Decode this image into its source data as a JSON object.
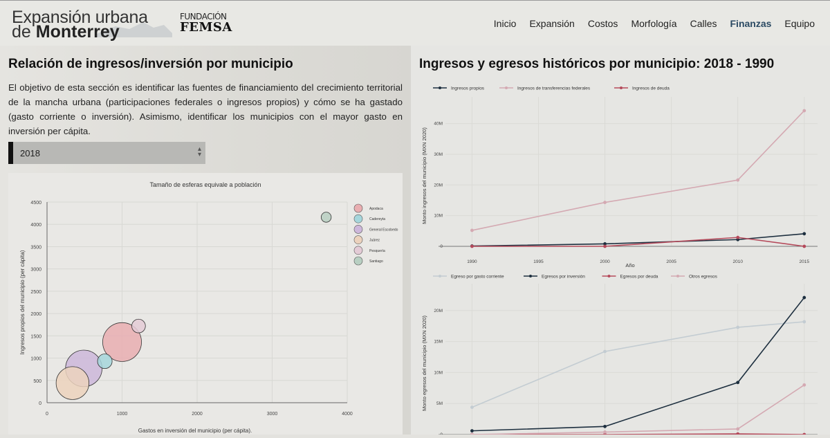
{
  "header": {
    "logo_line1": "Expansión urbana",
    "logo_line2_prefix": "de ",
    "logo_line2_bold": "Monterrey",
    "partner_top": "FUNDACIÓN",
    "partner_bottom": "FEMSA",
    "nav": [
      "Inicio",
      "Expansión",
      "Costos",
      "Morfología",
      "Calles",
      "Finanzas",
      "Equipo"
    ],
    "active_nav": "Finanzas"
  },
  "left": {
    "title": "Relación de ingresos/inversión por municipio",
    "description": "El objetivo de esta sección es identificar las fuentes de financiamiento del crecimiento territorial de la mancha urbana (participaciones federales o ingresos propios) y cómo se ha gastado (gasto corriente o inversión). Asimismo, identificar los municipios con el mayor gasto en inversión per cápita.",
    "year_select": {
      "value": "2018",
      "arrow": "▲▼"
    }
  },
  "right": {
    "title": "Ingresos y egresos históricos por municipio: 2018 - 1990"
  },
  "chart_data": [
    {
      "type": "scatter",
      "title": "Tamaño de esferas equivale a población",
      "xlabel": "Gastos en inversión del municipio (per cápita).",
      "ylabel": "Ingresos propios del municipio (per cápita)",
      "xlim": [
        0,
        4000
      ],
      "ylim": [
        0,
        4500
      ],
      "xticks": [
        0,
        1000,
        2000,
        3000,
        4000
      ],
      "yticks": [
        0,
        500,
        1000,
        1500,
        2000,
        2500,
        3000,
        3500,
        4000,
        4500
      ],
      "grid": true,
      "legend_position": "top-right",
      "points": [
        {
          "name": "Apodaca",
          "x": 1000,
          "y": 1360,
          "size": 0.85,
          "color": "#e9aeb1"
        },
        {
          "name": "Cadereyta",
          "x": 770,
          "y": 930,
          "size": 0.32,
          "color": "#a6d6dc"
        },
        {
          "name": "General Escobedo",
          "x": 490,
          "y": 770,
          "size": 0.8,
          "color": "#cdb7db"
        },
        {
          "name": "Juárez",
          "x": 340,
          "y": 440,
          "size": 0.72,
          "color": "#ecd2bd"
        },
        {
          "name": "Pesquería",
          "x": 1220,
          "y": 1720,
          "size": 0.3,
          "color": "#e4cbd6"
        },
        {
          "name": "Santiago",
          "x": 3720,
          "y": 4160,
          "size": 0.22,
          "color": "#b8cfc2"
        }
      ]
    },
    {
      "type": "line",
      "xlabel": "Año",
      "ylabel": "Monto ingresos del municipio (MXN 2020)",
      "xlim": [
        1988,
        2016
      ],
      "ylim": [
        0,
        46
      ],
      "xticks": [
        1990,
        1995,
        2000,
        2005,
        2010,
        2015
      ],
      "yticks": [
        0,
        10,
        20,
        30,
        40
      ],
      "ytick_labels": [
        "0",
        "10M",
        "20M",
        "30M",
        "40M"
      ],
      "legend_position": "top-left",
      "x": [
        1990,
        2000,
        2010,
        2015
      ],
      "series": [
        {
          "name": "Ingresos propios",
          "color": "#1d2f3f",
          "values": [
            0.1,
            0.8,
            2.2,
            4.1
          ]
        },
        {
          "name": "Ingresos de transferencias federales",
          "color": "#d4a9b2",
          "values": [
            5.2,
            14.3,
            21.6,
            44.2
          ]
        },
        {
          "name": "Ingresos de deuda",
          "color": "#b54a5b",
          "values": [
            0,
            0,
            2.9,
            0
          ]
        }
      ]
    },
    {
      "type": "line",
      "xlabel": "",
      "ylabel": "Monto egresos del municipio (MXN 2020)",
      "xlim": [
        1988,
        2016
      ],
      "ylim": [
        0,
        23
      ],
      "yticks": [
        0,
        5,
        10,
        15,
        20
      ],
      "ytick_labels": [
        "0",
        "5M",
        "10M",
        "15M",
        "20M"
      ],
      "legend_position": "top-left",
      "x": [
        1990,
        2000,
        2010,
        2015
      ],
      "series": [
        {
          "name": "Egreso por gasto corriente",
          "color": "#c3ccd2",
          "values": [
            4.4,
            13.4,
            17.3,
            18.2
          ]
        },
        {
          "name": "Egresos por inversión",
          "color": "#1d2f3f",
          "values": [
            0.6,
            1.3,
            8.4,
            22.1
          ]
        },
        {
          "name": "Egresos por deuda",
          "color": "#b54a5b",
          "values": [
            0,
            0,
            0.1,
            0
          ]
        },
        {
          "name": "Otros egresos",
          "color": "#d4a9b2",
          "values": [
            0,
            0.4,
            0.9,
            8.0
          ]
        }
      ]
    }
  ]
}
